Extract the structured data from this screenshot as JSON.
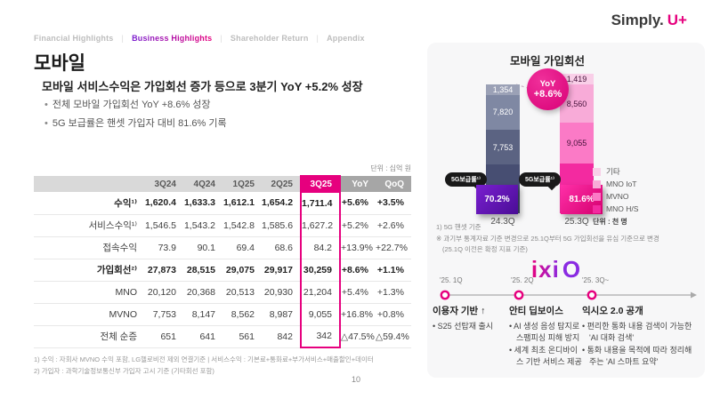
{
  "brand": {
    "simply": "Simply.",
    "uplus": "U+"
  },
  "nav": {
    "separator": "|",
    "items": [
      {
        "label": "Financial Highlights",
        "active": false
      },
      {
        "label": "Business Highlights",
        "active": true
      },
      {
        "label": "Shareholder Return",
        "active": false
      },
      {
        "label": "Appendix",
        "active": false
      }
    ]
  },
  "page": {
    "title": "모바일",
    "subtitle": "모바일 서비스수익은 가입회선 증가 등으로 3분기 YoY +5.2% 성장",
    "bullets": [
      "전체 모바일 가입회선 YoY +8.6% 성장",
      "5G 보급률은 핸셋 가입자 대비 81.6% 기록"
    ],
    "number": "10"
  },
  "table": {
    "unit": "단위 : 십억 원",
    "columns": [
      "",
      "3Q24",
      "4Q24",
      "1Q25",
      "2Q25",
      "3Q25",
      "YoY",
      "QoQ"
    ],
    "highlight_col": 5,
    "rows": [
      {
        "label": "수익¹⁾",
        "bold": true,
        "indent": false,
        "values": [
          "1,620.4",
          "1,633.3",
          "1,612.1",
          "1,654.2",
          "1,711.4",
          "+5.6%",
          "+3.5%"
        ]
      },
      {
        "label": "서비스수익¹⁾",
        "bold": false,
        "indent": true,
        "values": [
          "1,546.5",
          "1,543.2",
          "1,542.8",
          "1,585.6",
          "1,627.2",
          "+5.2%",
          "+2.6%"
        ]
      },
      {
        "label": "접속수익",
        "bold": false,
        "indent": true,
        "values": [
          "73.9",
          "90.1",
          "69.4",
          "68.6",
          "84.2",
          "+13.9%",
          "+22.7%"
        ]
      },
      {
        "label": "가입회선²⁾",
        "bold": true,
        "indent": false,
        "values": [
          "27,873",
          "28,515",
          "29,075",
          "29,917",
          "30,259",
          "+8.6%",
          "+1.1%"
        ]
      },
      {
        "label": "MNO",
        "bold": false,
        "indent": true,
        "values": [
          "20,120",
          "20,368",
          "20,513",
          "20,930",
          "21,204",
          "+5.4%",
          "+1.3%"
        ]
      },
      {
        "label": "MVNO",
        "bold": false,
        "indent": true,
        "values": [
          "7,753",
          "8,147",
          "8,562",
          "8,987",
          "9,055",
          "+16.8%",
          "+0.8%"
        ]
      },
      {
        "label": "전체 순증",
        "bold": false,
        "indent": false,
        "values": [
          "651",
          "641",
          "561",
          "842",
          "342",
          "△47.5%",
          "△59.4%"
        ]
      }
    ],
    "footnotes": [
      "1) 수익 : 자회사 MVNO 수익 포함, LG헬로비전 제외 연결기준 | 서비스수익 : 기본료+통화료+부가서비스+매출할인+데이터",
      "2) 가입자 : 과학기술정보통신부 가입자 고시 기준 (기타회선 포함)"
    ]
  },
  "chart_data": {
    "type": "bar",
    "stacked": true,
    "title": "모바일 가입회선",
    "unit": "단위 : 천 명",
    "categories": [
      "24.3Q",
      "25.3Q"
    ],
    "totals": [
      27873,
      30259
    ],
    "series": [
      {
        "name": "기타",
        "values": [
          1354,
          1419
        ],
        "colors": [
          "#9ba1b6",
          "#f9cfe8"
        ]
      },
      {
        "name": "MNO IoT",
        "values": [
          7820,
          8560
        ],
        "colors": [
          "#7f88a3",
          "#f8abd8"
        ]
      },
      {
        "name": "MVNO",
        "values": [
          7753,
          9055
        ],
        "colors": [
          "#5b6382",
          "#fb7ac6"
        ]
      },
      {
        "name": "MNO H/S",
        "values": [
          10946,
          11224
        ],
        "colors": [
          "#474e72",
          "#f32aa0"
        ]
      }
    ],
    "bar_label_colors": [
      "#ffffff",
      "#45123a"
    ],
    "yoy_badge": {
      "line1": "YoY",
      "line2": "+8.6%"
    },
    "penetration": {
      "label": "5G보급률¹⁾",
      "values": [
        "70.2%",
        "81.6%"
      ],
      "box_colors": [
        "linear-gradient(135deg,#7a1fd0,#4a0d96)",
        "linear-gradient(135deg,#ff2fa8,#d4006e)"
      ]
    },
    "legend": [
      "기타",
      "MNO IoT",
      "MVNO",
      "MNO H/S"
    ],
    "legend_colors": [
      "#f9cfe8",
      "#f8abd8",
      "#fb7ac6",
      "#f32aa0"
    ],
    "legend_position": "right",
    "footnotes": [
      "1) 5G 핸셋 기준",
      "※ 과기부 통계자료 기준 변경으로 25.1Q부터 5G 가입회선을 유심 기준으로 변경",
      "(25.1Q 이전은 확정 지표 기준)"
    ]
  },
  "ixio": {
    "logo_text": "ixi",
    "logo_o": "O",
    "milestones": [
      {
        "date": "'25. 1Q",
        "title": "이용자 기반 ↑",
        "bullets": [
          "S25 선탑재 출시"
        ]
      },
      {
        "date": "'25. 2Q",
        "title": "안티 딥보이스",
        "bullets": [
          "AI 생성 음성 탐지로 스팸피싱 피해 방지",
          "세계 최초 온디바이스 기반 서비스 제공"
        ]
      },
      {
        "date": "'25. 3Q~",
        "title": "익시오 2.0 공개",
        "bullets": [
          "편리한 통화 내용 검색이 가능한 'AI 대화 검색'",
          "통화 내용을 목적에 따라 정리해 주는 'AI 스마트 요약'"
        ]
      }
    ]
  },
  "colors": {
    "accent": "#e6007e",
    "purple": "#5c13a7",
    "panel_bg": "#f7f7f8"
  }
}
